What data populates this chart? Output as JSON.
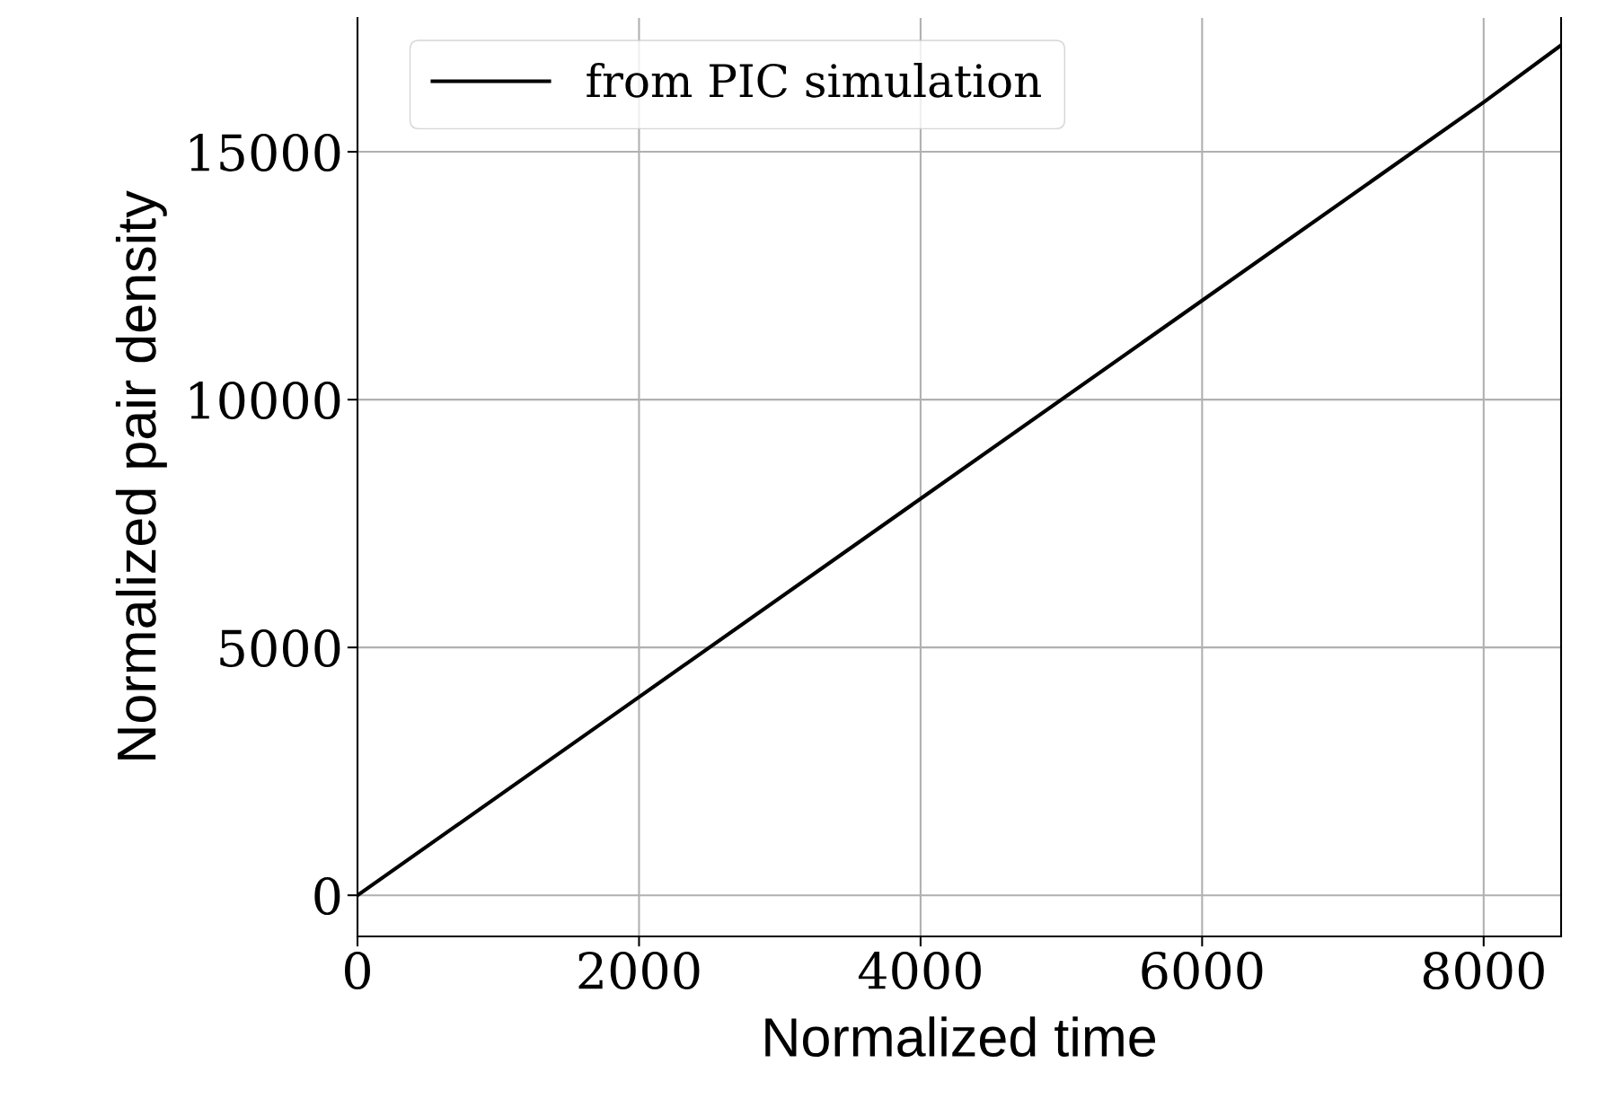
{
  "chart_data": {
    "type": "line",
    "xlabel": "Normalized time",
    "ylabel": "Normalized pair density",
    "series": [
      {
        "name": "from PIC simulation",
        "color": "#000000",
        "x": [
          0,
          2000,
          4000,
          6000,
          8000,
          8550
        ],
        "values": [
          0,
          4000,
          8000,
          12000,
          16000,
          17150
        ]
      }
    ],
    "xlim": [
      0,
      8550
    ],
    "xticks": [
      0,
      2000,
      4000,
      6000,
      8000
    ],
    "ylim": [
      -830,
      17700
    ],
    "yticks": [
      0,
      5000,
      10000,
      15000
    ],
    "grid": true,
    "legend": "top left",
    "marker": "none",
    "line_style": "solid"
  }
}
